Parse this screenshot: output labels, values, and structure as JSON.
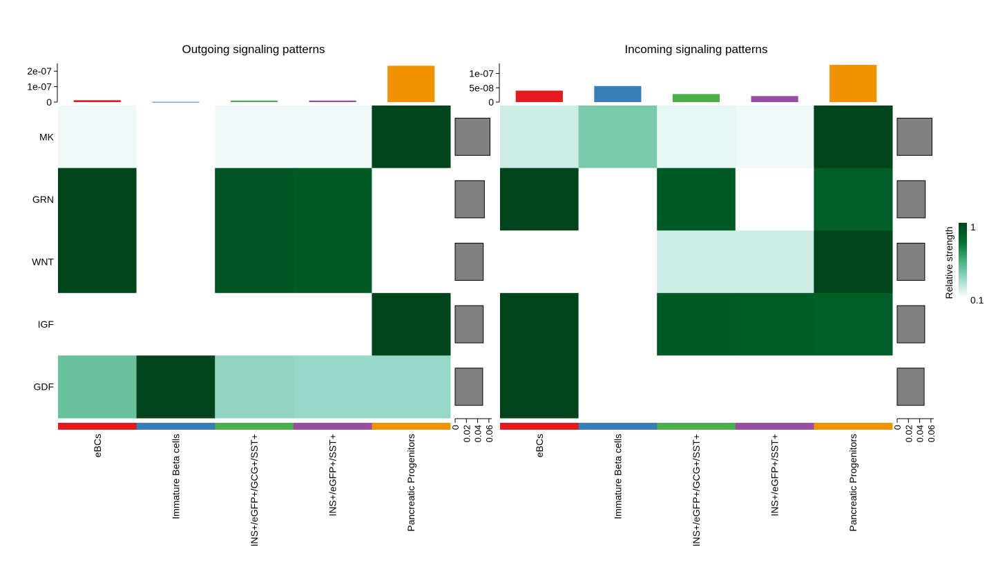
{
  "chart_data": [
    {
      "type": "heatmap",
      "title": "Outgoing signaling patterns",
      "rows": [
        "MK",
        "GRN",
        "WNT",
        "IGF",
        "GDF"
      ],
      "columns": [
        "eBCs",
        "Immature Beta cells",
        "INS+/eGFP+/GCG+/SST+",
        "INS+/eGFP+/SST+",
        "Pancreatic Progenitors"
      ],
      "column_colors": [
        "#e41a1c",
        "#377eb8",
        "#4daf4a",
        "#984ea3",
        "#f39200"
      ],
      "values": [
        [
          0.12,
          null,
          0.12,
          0.12,
          1.0
        ],
        [
          1.0,
          null,
          0.9,
          0.88,
          null
        ],
        [
          1.0,
          null,
          0.9,
          0.88,
          null
        ],
        [
          null,
          null,
          null,
          null,
          1.0
        ],
        [
          0.45,
          1.0,
          0.35,
          0.33,
          0.33
        ]
      ],
      "top_bar": {
        "values": [
          1.2e-08,
          1.5e-09,
          1e-08,
          1e-08,
          2.35e-07
        ],
        "ylim": [
          0,
          2.5e-07
        ],
        "ticks": [
          "0",
          "1e-07",
          "2e-07"
        ],
        "tick_values": [
          0,
          1e-07,
          2e-07
        ]
      },
      "right_bar": {
        "values": [
          0.062,
          0.052,
          0.05,
          0.05,
          0.049
        ],
        "xlim": [
          0,
          0.07
        ],
        "ticks": [
          "0",
          "0.02",
          "0.04",
          "0.06"
        ],
        "tick_values": [
          0,
          0.02,
          0.04,
          0.06
        ],
        "color": "#808080"
      }
    },
    {
      "type": "heatmap",
      "title": "Incoming signaling patterns",
      "rows": [
        "MK",
        "GRN",
        "WNT",
        "IGF",
        "GDF"
      ],
      "columns": [
        "eBCs",
        "Immature Beta cells",
        "INS+/eGFP+/GCG+/SST+",
        "INS+/eGFP+/SST+",
        "Pancreatic Progenitors"
      ],
      "column_colors": [
        "#e41a1c",
        "#377eb8",
        "#4daf4a",
        "#984ea3",
        "#f39200"
      ],
      "values": [
        [
          0.2,
          0.4,
          0.14,
          0.12,
          1.0
        ],
        [
          1.0,
          null,
          0.88,
          null,
          0.85
        ],
        [
          null,
          null,
          0.2,
          0.2,
          1.0
        ],
        [
          1.0,
          null,
          0.88,
          0.87,
          0.86
        ],
        [
          1.0,
          null,
          null,
          null,
          null
        ]
      ],
      "top_bar": {
        "values": [
          4e-08,
          5.6e-08,
          2.8e-08,
          2.1e-08,
          1.3e-07
        ],
        "ylim": [
          0,
          1.35e-07
        ],
        "ticks": [
          "0",
          "5e-08",
          "1e-07"
        ],
        "tick_values": [
          0,
          5e-08,
          1e-07
        ]
      },
      "right_bar": {
        "values": [
          0.062,
          0.05,
          0.049,
          0.049,
          0.048
        ],
        "xlim": [
          0,
          0.07
        ],
        "ticks": [
          "0",
          "0.02",
          "0.04",
          "0.06"
        ],
        "tick_values": [
          0,
          0.02,
          0.04,
          0.06
        ],
        "color": "#808080"
      }
    }
  ],
  "legend": {
    "title": "Relative strength",
    "max_label": "1",
    "min_label": "0.1",
    "gradient_colors": [
      "#f7fcfd",
      "#99d8c9",
      "#41ae76",
      "#006d2c",
      "#00441b"
    ]
  }
}
